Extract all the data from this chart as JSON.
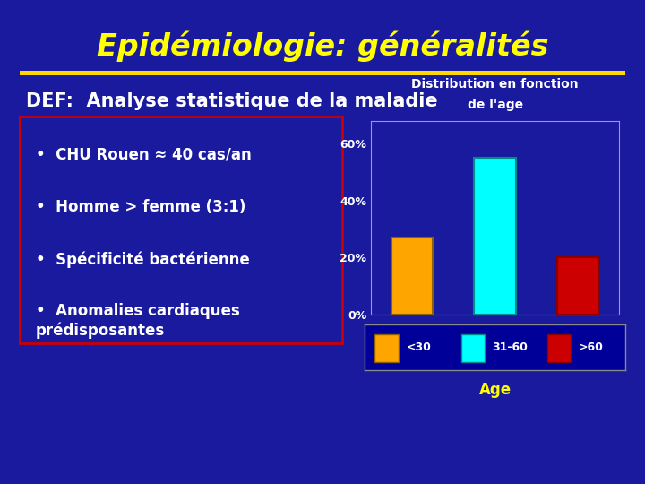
{
  "title": "Epidémiologie: généralités",
  "title_color": "#FFFF00",
  "bg_color": "#1A1A9E",
  "separator_color": "#FFD700",
  "def_text": "DEF:  Analyse statistique de la maladie",
  "def_color": "#FFFFFF",
  "bullets": [
    "CHU Rouen ≈ 40 cas/an",
    "Homme > femme (3:1)",
    "Spécificité bactérienne",
    "Anomalies cardiaques\nprédisposantes"
  ],
  "bullet_color": "#FFFFFF",
  "bullet_box_edge": "#CC0000",
  "chart_title_line1": "Distribution en fonction",
  "chart_title_line2": "de l'age",
  "chart_title_color": "#FFFFFF",
  "chart_plot_bg": "#1A1A9E",
  "chart_border_color": "#9999CC",
  "bar_categories": [
    "<30",
    "31-60",
    ">60"
  ],
  "bar_values": [
    0.27,
    0.55,
    0.2
  ],
  "bar_colors": [
    "#FFA500",
    "#00FFFF",
    "#CC0000"
  ],
  "bar_edge_colors": [
    "#8B6000",
    "#008B8B",
    "#8B0000"
  ],
  "yticks": [
    0.0,
    0.2,
    0.4,
    0.6
  ],
  "ytick_labels": [
    "0%",
    "20%",
    "40%",
    "60%"
  ],
  "xlabel": "Age",
  "xlabel_color": "#FFFF00",
  "axis_label_color": "#FFFFFF",
  "legend_bg": "#000099",
  "legend_edge": "#888888"
}
